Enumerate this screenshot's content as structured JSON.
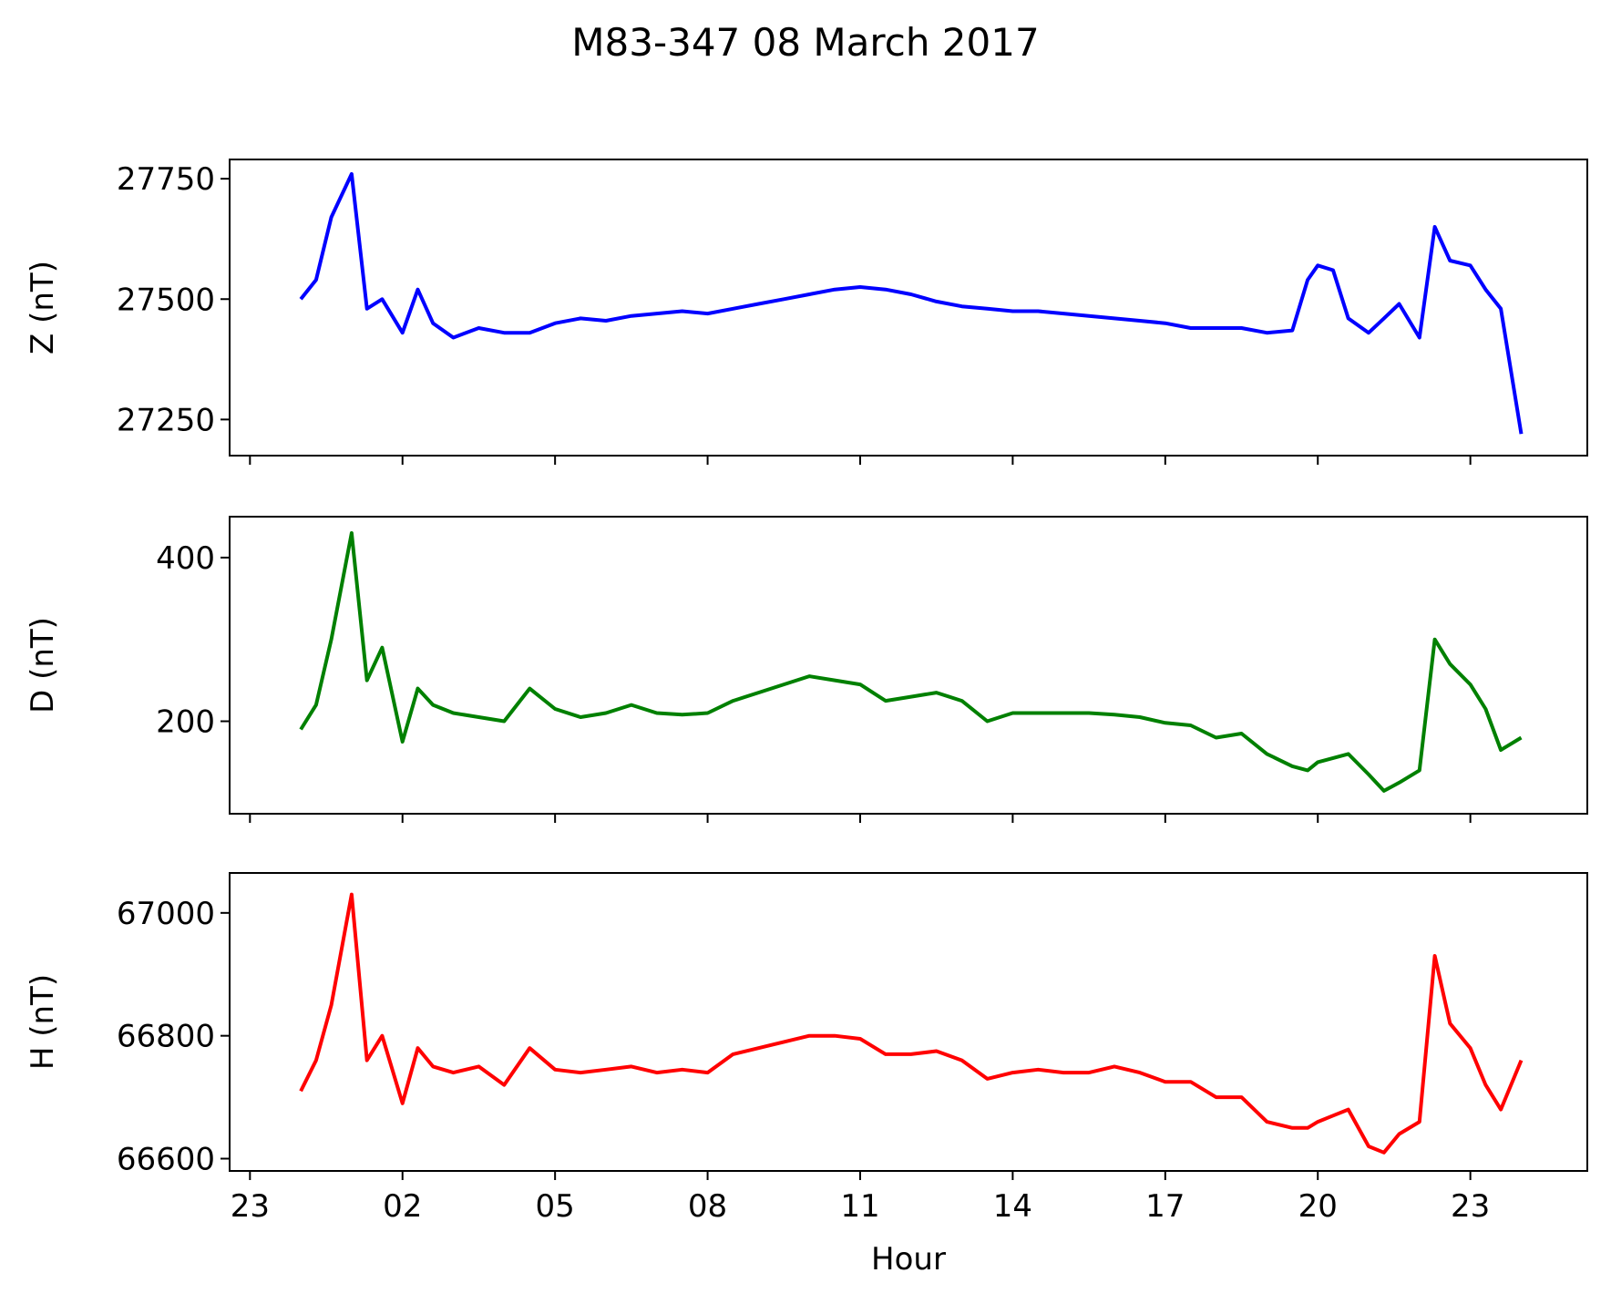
{
  "chart_data": {
    "title": "M83-347 08 March 2017",
    "type": "line",
    "x_unit": "hour",
    "xlim": [
      22.6,
      49.3
    ],
    "x_ticks": [
      {
        "value": 23,
        "label": "23"
      },
      {
        "value": 26,
        "label": "02"
      },
      {
        "value": 29,
        "label": "05"
      },
      {
        "value": 32,
        "label": "08"
      },
      {
        "value": 35,
        "label": "11"
      },
      {
        "value": 38,
        "label": "14"
      },
      {
        "value": 41,
        "label": "17"
      },
      {
        "value": 44,
        "label": "20"
      },
      {
        "value": 47,
        "label": "23"
      }
    ],
    "xlabel": "Hour",
    "shared_x": [
      24.0,
      24.3,
      24.6,
      25.0,
      25.3,
      25.6,
      26.0,
      26.3,
      26.6,
      27.0,
      27.5,
      28.0,
      28.5,
      29.0,
      29.5,
      30.0,
      30.5,
      31.0,
      31.5,
      32.0,
      32.5,
      33.0,
      33.5,
      34.0,
      34.5,
      35.0,
      35.5,
      36.0,
      36.5,
      37.0,
      37.5,
      38.0,
      38.5,
      39.0,
      39.5,
      40.0,
      40.5,
      41.0,
      41.5,
      42.0,
      42.5,
      43.0,
      43.5,
      43.8,
      44.0,
      44.3,
      44.6,
      45.0,
      45.3,
      45.6,
      46.0,
      46.3,
      46.6,
      47.0,
      47.3,
      47.6,
      48.0
    ],
    "panels": [
      {
        "ylabel": "Z (nT)",
        "color": "#0000ff",
        "ylim": [
          27175,
          27790
        ],
        "y_ticks": [
          27250,
          27500,
          27750
        ],
        "values": [
          27500,
          27540,
          27670,
          27760,
          27480,
          27500,
          27430,
          27520,
          27450,
          27420,
          27440,
          27430,
          27430,
          27450,
          27460,
          27455,
          27465,
          27470,
          27475,
          27470,
          27480,
          27490,
          27500,
          27510,
          27520,
          27525,
          27520,
          27510,
          27495,
          27485,
          27480,
          27475,
          27475,
          27470,
          27465,
          27460,
          27455,
          27450,
          27440,
          27440,
          27440,
          27430,
          27435,
          27540,
          27570,
          27560,
          27460,
          27430,
          27460,
          27490,
          27420,
          27650,
          27580,
          27570,
          27520,
          27480,
          27220
        ]
      },
      {
        "ylabel": "D (nT)",
        "color": "#008000",
        "ylim": [
          87,
          450
        ],
        "y_ticks": [
          200,
          400
        ],
        "values": [
          190,
          220,
          300,
          430,
          250,
          290,
          175,
          240,
          220,
          210,
          205,
          200,
          240,
          215,
          205,
          210,
          220,
          210,
          208,
          210,
          225,
          235,
          245,
          255,
          250,
          245,
          225,
          230,
          235,
          225,
          200,
          210,
          210,
          210,
          210,
          208,
          205,
          198,
          195,
          180,
          185,
          160,
          145,
          140,
          150,
          155,
          160,
          135,
          115,
          125,
          140,
          300,
          270,
          245,
          215,
          165,
          180
        ]
      },
      {
        "ylabel": "H (nT)",
        "color": "#ff0000",
        "ylim": [
          66580,
          67065
        ],
        "y_ticks": [
          66600,
          66800,
          67000
        ],
        "values": [
          66710,
          66760,
          66850,
          67030,
          66760,
          66800,
          66690,
          66780,
          66750,
          66740,
          66750,
          66720,
          66780,
          66745,
          66740,
          66745,
          66750,
          66740,
          66745,
          66740,
          66770,
          66780,
          66790,
          66800,
          66800,
          66795,
          66770,
          66770,
          66775,
          66760,
          66730,
          66740,
          66745,
          66740,
          66740,
          66750,
          66740,
          66725,
          66725,
          66700,
          66700,
          66660,
          66650,
          66650,
          66660,
          66670,
          66680,
          66620,
          66610,
          66640,
          66660,
          66930,
          66820,
          66780,
          66720,
          66680,
          66760
        ]
      }
    ]
  }
}
